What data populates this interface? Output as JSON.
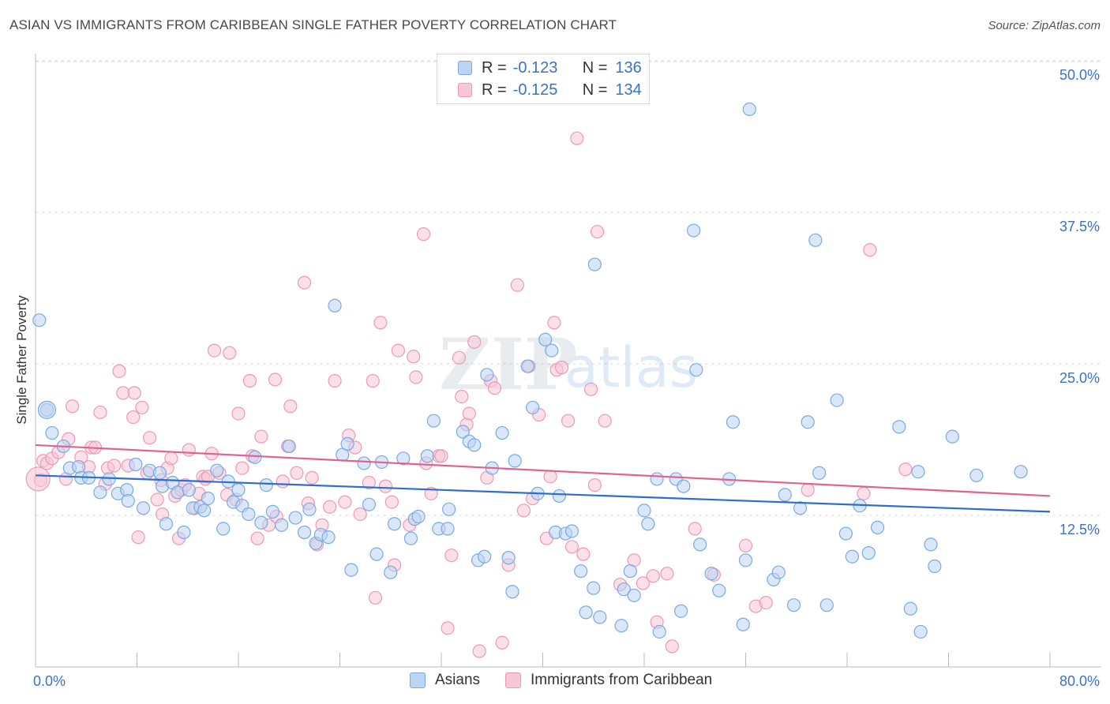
{
  "title": "ASIAN VS IMMIGRANTS FROM CARIBBEAN SINGLE FATHER POVERTY CORRELATION CHART",
  "source": "Source: ZipAtlas.com",
  "watermark": {
    "zip": "ZIP",
    "atlas": "atlas"
  },
  "legend": {
    "r_label": "R =",
    "n_label": "N =",
    "asians": {
      "r": "-0.123",
      "n": "136"
    },
    "caribbean": {
      "r": "-0.125",
      "n": "134"
    }
  },
  "chart_data": {
    "type": "scatter",
    "title": "ASIAN VS IMMIGRANTS FROM CARIBBEAN SINGLE FATHER POVERTY CORRELATION CHART",
    "ylabel": "Single Father Poverty",
    "xlabel": "",
    "xlim": [
      0,
      80
    ],
    "ylim": [
      0,
      52.5
    ],
    "x_tick_labels": [
      "0.0%",
      "80.0%"
    ],
    "y_ticks": [
      12.5,
      25.0,
      37.5,
      50.0
    ],
    "y_tick_labels": [
      "12.5%",
      "25.0%",
      "37.5%",
      "50.0%"
    ],
    "legend_position": "top-center",
    "series": [
      {
        "name": "Asians",
        "color": "#7aaae0",
        "fill": "#bcd4f3",
        "line_color": "#2f6fcc",
        "trend": {
          "x": [
            0,
            80
          ],
          "y": [
            15.8,
            12.8
          ]
        },
        "points": [
          [
            0.3,
            28.6
          ],
          [
            0.9,
            21.2
          ],
          [
            1.3,
            19.3
          ],
          [
            2.2,
            18.2
          ],
          [
            2.7,
            16.4
          ],
          [
            3.4,
            16.5
          ],
          [
            3.6,
            15.6
          ],
          [
            4.2,
            15.6
          ],
          [
            5.1,
            14.4
          ],
          [
            5.8,
            15.5
          ],
          [
            6.5,
            14.3
          ],
          [
            7.2,
            14.6
          ],
          [
            7.3,
            13.7
          ],
          [
            7.9,
            16.7
          ],
          [
            8.5,
            13.1
          ],
          [
            9.0,
            16.2
          ],
          [
            9.8,
            16.0
          ],
          [
            10.0,
            14.9
          ],
          [
            10.3,
            11.8
          ],
          [
            10.8,
            15.2
          ],
          [
            11.2,
            14.4
          ],
          [
            11.7,
            11.1
          ],
          [
            12.1,
            14.6
          ],
          [
            12.4,
            13.1
          ],
          [
            13.0,
            13.2
          ],
          [
            13.3,
            12.9
          ],
          [
            13.6,
            13.9
          ],
          [
            14.3,
            16.2
          ],
          [
            14.8,
            11.4
          ],
          [
            15.2,
            15.3
          ],
          [
            15.6,
            13.6
          ],
          [
            16.0,
            14.6
          ],
          [
            16.3,
            13.3
          ],
          [
            16.8,
            12.6
          ],
          [
            17.3,
            17.3
          ],
          [
            17.8,
            11.9
          ],
          [
            18.2,
            15.0
          ],
          [
            18.7,
            12.8
          ],
          [
            19.4,
            11.7
          ],
          [
            20.0,
            18.2
          ],
          [
            20.5,
            12.3
          ],
          [
            21.2,
            11.1
          ],
          [
            21.6,
            13.0
          ],
          [
            22.1,
            10.2
          ],
          [
            22.5,
            10.9
          ],
          [
            23.1,
            10.7
          ],
          [
            23.6,
            29.8
          ],
          [
            24.2,
            17.5
          ],
          [
            24.6,
            18.4
          ],
          [
            24.9,
            8.0
          ],
          [
            25.9,
            16.8
          ],
          [
            26.3,
            13.4
          ],
          [
            26.9,
            9.3
          ],
          [
            27.3,
            16.9
          ],
          [
            28.0,
            7.8
          ],
          [
            28.3,
            11.8
          ],
          [
            29.0,
            17.2
          ],
          [
            29.6,
            10.6
          ],
          [
            29.9,
            12.2
          ],
          [
            30.2,
            12.4
          ],
          [
            30.9,
            17.4
          ],
          [
            31.4,
            20.3
          ],
          [
            31.8,
            11.4
          ],
          [
            32.5,
            11.4
          ],
          [
            32.6,
            13.0
          ],
          [
            33.7,
            19.4
          ],
          [
            34.2,
            18.6
          ],
          [
            34.6,
            18.3
          ],
          [
            34.9,
            8.8
          ],
          [
            35.4,
            9.1
          ],
          [
            35.6,
            24.1
          ],
          [
            36.0,
            16.4
          ],
          [
            36.8,
            19.3
          ],
          [
            37.3,
            9.0
          ],
          [
            37.6,
            6.2
          ],
          [
            37.8,
            17.0
          ],
          [
            38.8,
            24.8
          ],
          [
            39.2,
            21.4
          ],
          [
            39.6,
            14.3
          ],
          [
            40.2,
            27.0
          ],
          [
            40.7,
            26.1
          ],
          [
            41.0,
            11.1
          ],
          [
            41.3,
            14.1
          ],
          [
            41.8,
            11.0
          ],
          [
            42.3,
            11.2
          ],
          [
            43.0,
            7.9
          ],
          [
            43.4,
            4.5
          ],
          [
            44.0,
            6.5
          ],
          [
            44.1,
            33.2
          ],
          [
            44.5,
            4.1
          ],
          [
            46.2,
            3.4
          ],
          [
            46.4,
            6.4
          ],
          [
            46.9,
            7.9
          ],
          [
            47.2,
            5.9
          ],
          [
            48.0,
            12.9
          ],
          [
            48.3,
            11.8
          ],
          [
            49.0,
            15.5
          ],
          [
            49.2,
            2.9
          ],
          [
            50.5,
            15.5
          ],
          [
            50.9,
            4.6
          ],
          [
            51.1,
            14.9
          ],
          [
            51.9,
            36.0
          ],
          [
            52.1,
            24.5
          ],
          [
            52.4,
            10.1
          ],
          [
            53.3,
            7.7
          ],
          [
            53.9,
            6.3
          ],
          [
            54.7,
            15.5
          ],
          [
            55.0,
            20.2
          ],
          [
            55.8,
            3.5
          ],
          [
            56.0,
            8.8
          ],
          [
            56.3,
            46.0
          ],
          [
            58.2,
            7.2
          ],
          [
            58.6,
            7.8
          ],
          [
            59.1,
            14.2
          ],
          [
            59.8,
            5.1
          ],
          [
            60.3,
            13.1
          ],
          [
            60.9,
            20.2
          ],
          [
            61.5,
            35.2
          ],
          [
            61.8,
            16.0
          ],
          [
            62.4,
            5.1
          ],
          [
            63.2,
            22.0
          ],
          [
            63.9,
            11.0
          ],
          [
            64.4,
            9.1
          ],
          [
            65.0,
            13.3
          ],
          [
            65.7,
            9.4
          ],
          [
            66.4,
            11.5
          ],
          [
            68.1,
            19.8
          ],
          [
            69.0,
            4.8
          ],
          [
            69.6,
            16.1
          ],
          [
            69.8,
            2.9
          ],
          [
            70.6,
            10.1
          ],
          [
            70.9,
            8.3
          ],
          [
            72.3,
            19.0
          ],
          [
            74.2,
            15.8
          ],
          [
            77.7,
            16.1
          ]
        ]
      },
      {
        "name": "Immigrants from Caribbean",
        "color": "#ec9ab6",
        "fill": "#f8c7d7",
        "line_color": "#e06290",
        "trend": {
          "x": [
            0,
            80
          ],
          "y": [
            18.3,
            14.1
          ]
        },
        "points": [
          [
            0.4,
            15.4
          ],
          [
            0.6,
            17.0
          ],
          [
            0.9,
            16.8
          ],
          [
            1.3,
            17.2
          ],
          [
            1.8,
            17.7
          ],
          [
            2.4,
            15.5
          ],
          [
            2.6,
            18.8
          ],
          [
            2.9,
            21.5
          ],
          [
            3.6,
            17.3
          ],
          [
            4.2,
            16.5
          ],
          [
            4.4,
            18.1
          ],
          [
            4.7,
            18.1
          ],
          [
            5.1,
            21.0
          ],
          [
            5.5,
            15.1
          ],
          [
            5.7,
            16.4
          ],
          [
            6.2,
            16.6
          ],
          [
            6.6,
            24.4
          ],
          [
            6.9,
            22.6
          ],
          [
            7.3,
            16.6
          ],
          [
            7.7,
            20.6
          ],
          [
            7.8,
            22.6
          ],
          [
            8.1,
            10.7
          ],
          [
            8.4,
            21.4
          ],
          [
            8.8,
            16.0
          ],
          [
            9.0,
            18.9
          ],
          [
            9.6,
            13.8
          ],
          [
            9.9,
            15.4
          ],
          [
            10.0,
            12.6
          ],
          [
            10.4,
            16.4
          ],
          [
            10.7,
            17.2
          ],
          [
            11.0,
            14.1
          ],
          [
            11.3,
            10.6
          ],
          [
            11.5,
            14.6
          ],
          [
            11.8,
            15.0
          ],
          [
            12.1,
            17.9
          ],
          [
            12.6,
            13.1
          ],
          [
            12.9,
            14.3
          ],
          [
            13.2,
            15.7
          ],
          [
            13.4,
            15.5
          ],
          [
            13.6,
            15.7
          ],
          [
            13.9,
            17.6
          ],
          [
            14.1,
            26.1
          ],
          [
            14.5,
            16.0
          ],
          [
            15.1,
            14.2
          ],
          [
            15.3,
            25.9
          ],
          [
            15.8,
            13.8
          ],
          [
            16.0,
            20.9
          ],
          [
            16.3,
            16.4
          ],
          [
            16.9,
            23.6
          ],
          [
            17.1,
            17.4
          ],
          [
            17.5,
            10.6
          ],
          [
            17.8,
            19.0
          ],
          [
            18.4,
            11.7
          ],
          [
            18.9,
            23.7
          ],
          [
            19.0,
            12.4
          ],
          [
            19.5,
            15.3
          ],
          [
            19.9,
            18.2
          ],
          [
            20.1,
            21.5
          ],
          [
            20.6,
            16.0
          ],
          [
            21.2,
            31.7
          ],
          [
            21.5,
            13.5
          ],
          [
            21.8,
            15.6
          ],
          [
            22.2,
            10.1
          ],
          [
            22.6,
            11.7
          ],
          [
            23.2,
            13.2
          ],
          [
            23.6,
            23.6
          ],
          [
            24.4,
            13.6
          ],
          [
            24.7,
            19.1
          ],
          [
            25.2,
            18.1
          ],
          [
            25.6,
            12.6
          ],
          [
            26.3,
            15.2
          ],
          [
            26.6,
            23.6
          ],
          [
            26.8,
            5.7
          ],
          [
            27.2,
            28.4
          ],
          [
            27.6,
            14.9
          ],
          [
            28.1,
            13.6
          ],
          [
            28.3,
            8.4
          ],
          [
            28.6,
            26.1
          ],
          [
            29.5,
            11.7
          ],
          [
            29.8,
            25.6
          ],
          [
            30.0,
            23.9
          ],
          [
            30.6,
            35.7
          ],
          [
            30.8,
            16.8
          ],
          [
            31.2,
            14.3
          ],
          [
            31.8,
            17.4
          ],
          [
            32.0,
            17.4
          ],
          [
            32.5,
            3.2
          ],
          [
            32.8,
            9.2
          ],
          [
            33.4,
            25.5
          ],
          [
            33.6,
            22.3
          ],
          [
            34.0,
            20.0
          ],
          [
            34.2,
            20.9
          ],
          [
            34.6,
            26.8
          ],
          [
            35.0,
            1.3
          ],
          [
            35.6,
            15.6
          ],
          [
            35.9,
            23.6
          ],
          [
            36.2,
            23.0
          ],
          [
            36.8,
            2.0
          ],
          [
            37.3,
            8.4
          ],
          [
            38.0,
            31.5
          ],
          [
            38.5,
            12.9
          ],
          [
            38.9,
            24.8
          ],
          [
            39.2,
            13.9
          ],
          [
            39.7,
            20.8
          ],
          [
            40.3,
            10.6
          ],
          [
            40.6,
            15.7
          ],
          [
            40.9,
            28.4
          ],
          [
            41.1,
            24.5
          ],
          [
            41.5,
            24.7
          ],
          [
            42.0,
            20.3
          ],
          [
            42.3,
            9.9
          ],
          [
            42.7,
            43.6
          ],
          [
            43.2,
            9.3
          ],
          [
            43.8,
            22.9
          ],
          [
            44.1,
            15.0
          ],
          [
            44.3,
            35.9
          ],
          [
            44.9,
            20.3
          ],
          [
            46.1,
            6.8
          ],
          [
            47.2,
            8.8
          ],
          [
            47.9,
            6.9
          ],
          [
            48.7,
            7.5
          ],
          [
            49.0,
            3.7
          ],
          [
            49.8,
            7.7
          ],
          [
            50.2,
            1.7
          ],
          [
            52.0,
            11.4
          ],
          [
            53.5,
            7.6
          ],
          [
            56.0,
            10.0
          ],
          [
            56.8,
            5.0
          ],
          [
            57.6,
            5.3
          ],
          [
            60.9,
            14.6
          ],
          [
            65.3,
            14.3
          ],
          [
            65.8,
            34.4
          ],
          [
            68.6,
            16.3
          ]
        ]
      }
    ]
  }
}
